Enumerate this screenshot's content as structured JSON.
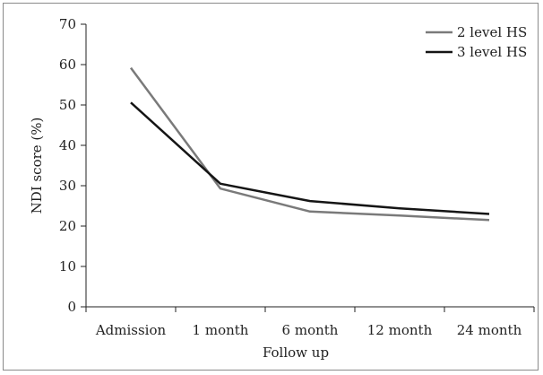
{
  "chart_data": {
    "type": "line",
    "title": "",
    "xlabel": "Follow up",
    "ylabel": "NDI score (%)",
    "ylim": [
      0,
      70
    ],
    "yticks": [
      0,
      10,
      20,
      30,
      40,
      50,
      60,
      70
    ],
    "categories": [
      "Admission",
      "1 month",
      "6 month",
      "12 month",
      "24 month"
    ],
    "series": [
      {
        "name": "2 level HS",
        "color": "#7a7a7a",
        "values": [
          59.2,
          29.3,
          23.6,
          22.6,
          21.5
        ]
      },
      {
        "name": "3 level HS",
        "color": "#151515",
        "values": [
          50.6,
          30.5,
          26.2,
          24.4,
          23.0
        ]
      }
    ],
    "legend_position": "top-right",
    "grid": false
  }
}
